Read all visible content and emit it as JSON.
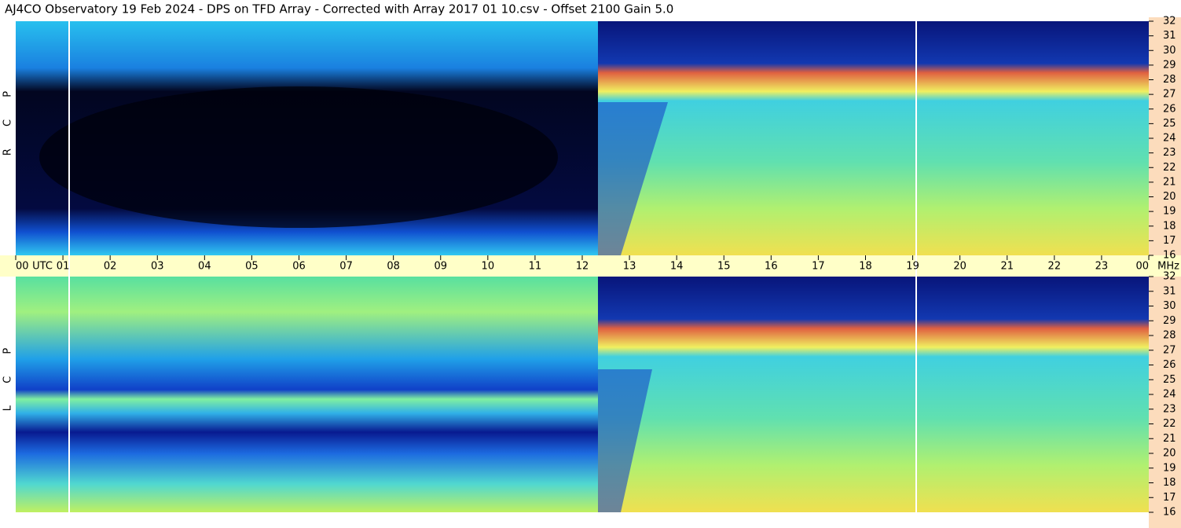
{
  "title": "AJ4CO Observatory  19 Feb 2024  -  DPS on TFD Array  -  Corrected with Array 2017 01 10.csv  -  Offset 2100  Gain 5.0",
  "x_axis": {
    "label": "UTC",
    "unit": "MHz",
    "xlim": [
      0,
      24
    ],
    "xticks": [
      {
        "value": 0,
        "label": "00"
      },
      {
        "value": 1,
        "label": "01"
      },
      {
        "value": 2,
        "label": "02"
      },
      {
        "value": 3,
        "label": "03"
      },
      {
        "value": 4,
        "label": "04"
      },
      {
        "value": 5,
        "label": "05"
      },
      {
        "value": 6,
        "label": "06"
      },
      {
        "value": 7,
        "label": "07"
      },
      {
        "value": 8,
        "label": "08"
      },
      {
        "value": 9,
        "label": "09"
      },
      10,
      11,
      12,
      13,
      14,
      15,
      16,
      17,
      18,
      19,
      20,
      21,
      22,
      23,
      {
        "value": 24,
        "label": "00"
      }
    ]
  },
  "chart_data": [
    {
      "type": "heatmap",
      "ylabel": "R C P",
      "ylim": [
        16,
        32
      ],
      "yticks": [
        16,
        17,
        18,
        19,
        20,
        21,
        22,
        23,
        24,
        25,
        26,
        27,
        28,
        29,
        30,
        31,
        32
      ]
    },
    {
      "type": "heatmap",
      "ylabel": "L C P",
      "ylim": [
        16,
        32
      ],
      "yticks": [
        16,
        17,
        18,
        19,
        20,
        21,
        22,
        23,
        24,
        25,
        26,
        27,
        28,
        29,
        30,
        31,
        32
      ]
    }
  ]
}
